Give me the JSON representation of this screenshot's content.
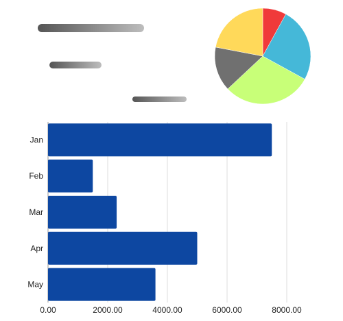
{
  "chart_data": [
    {
      "type": "bar",
      "orientation": "horizontal",
      "categories": [
        "Jan",
        "Feb",
        "Mar",
        "Apr",
        "May"
      ],
      "values": [
        7500,
        1500,
        2300,
        5000,
        3600
      ],
      "xlim": [
        0,
        8000
      ],
      "xticks": [
        0,
        2000,
        4000,
        6000,
        8000
      ],
      "xtick_labels": [
        "0.00",
        "2000.00",
        "4000.00",
        "6000.00",
        "8000.00"
      ],
      "grid": "vertical",
      "bar_color": "#0d47a1",
      "title": "",
      "xlabel": "",
      "ylabel": ""
    },
    {
      "type": "pie",
      "values": [
        8,
        25,
        30,
        15,
        22
      ],
      "colors": [
        "#f03a3a",
        "#45b8d8",
        "#c8ff78",
        "#707070",
        "#ffd95a"
      ]
    },
    {
      "type": "bar",
      "orientation": "horizontal",
      "style": "floating",
      "values": [
        [
          0.0,
          1.0
        ],
        [
          0.11,
          0.6
        ],
        [
          0.89,
          1.4
        ]
      ],
      "xlim": [
        0,
        1.4
      ],
      "colors": [
        "#555555",
        "#555555",
        "#555555"
      ]
    }
  ]
}
